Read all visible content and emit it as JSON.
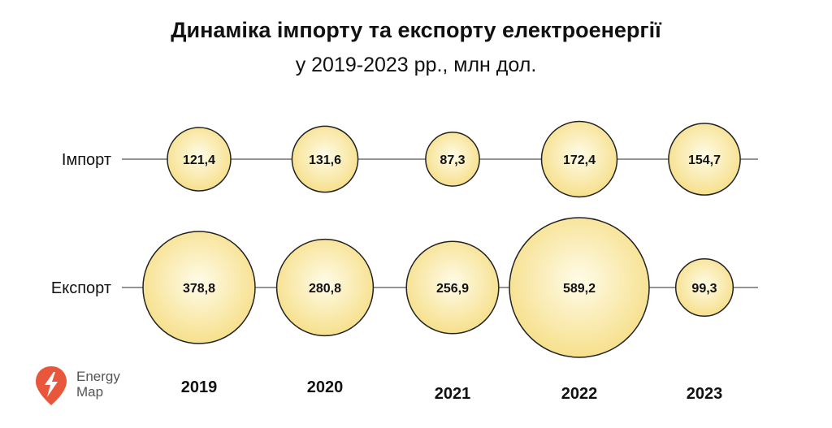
{
  "title": "Динаміка імпорту та експорту електроенергії",
  "subtitle": "у 2019-2023 рр., млн дол.",
  "logo": {
    "line1": "Energy",
    "line2": "Map",
    "icon": "map-pin-lightning-icon",
    "color": "#e8573c"
  },
  "chart_data": {
    "type": "bubble",
    "categories": [
      "2019",
      "2020",
      "2021",
      "2022",
      "2023"
    ],
    "series": [
      {
        "name": "Імпорт",
        "values": [
          121.4,
          131.6,
          87.3,
          172.4,
          154.7
        ],
        "labels": [
          "121,4",
          "131,6",
          "87,3",
          "172,4",
          "154,7"
        ]
      },
      {
        "name": "Експорт",
        "values": [
          378.8,
          280.8,
          256.9,
          589.2,
          99.3
        ],
        "labels": [
          "378,8",
          "280,8",
          "256,9",
          "589,2",
          "99,3"
        ]
      }
    ],
    "colors": {
      "bubble_center": "#fffbe8",
      "bubble_edge": "#f6e08c",
      "stroke": "#222222",
      "line": "#555555"
    }
  }
}
